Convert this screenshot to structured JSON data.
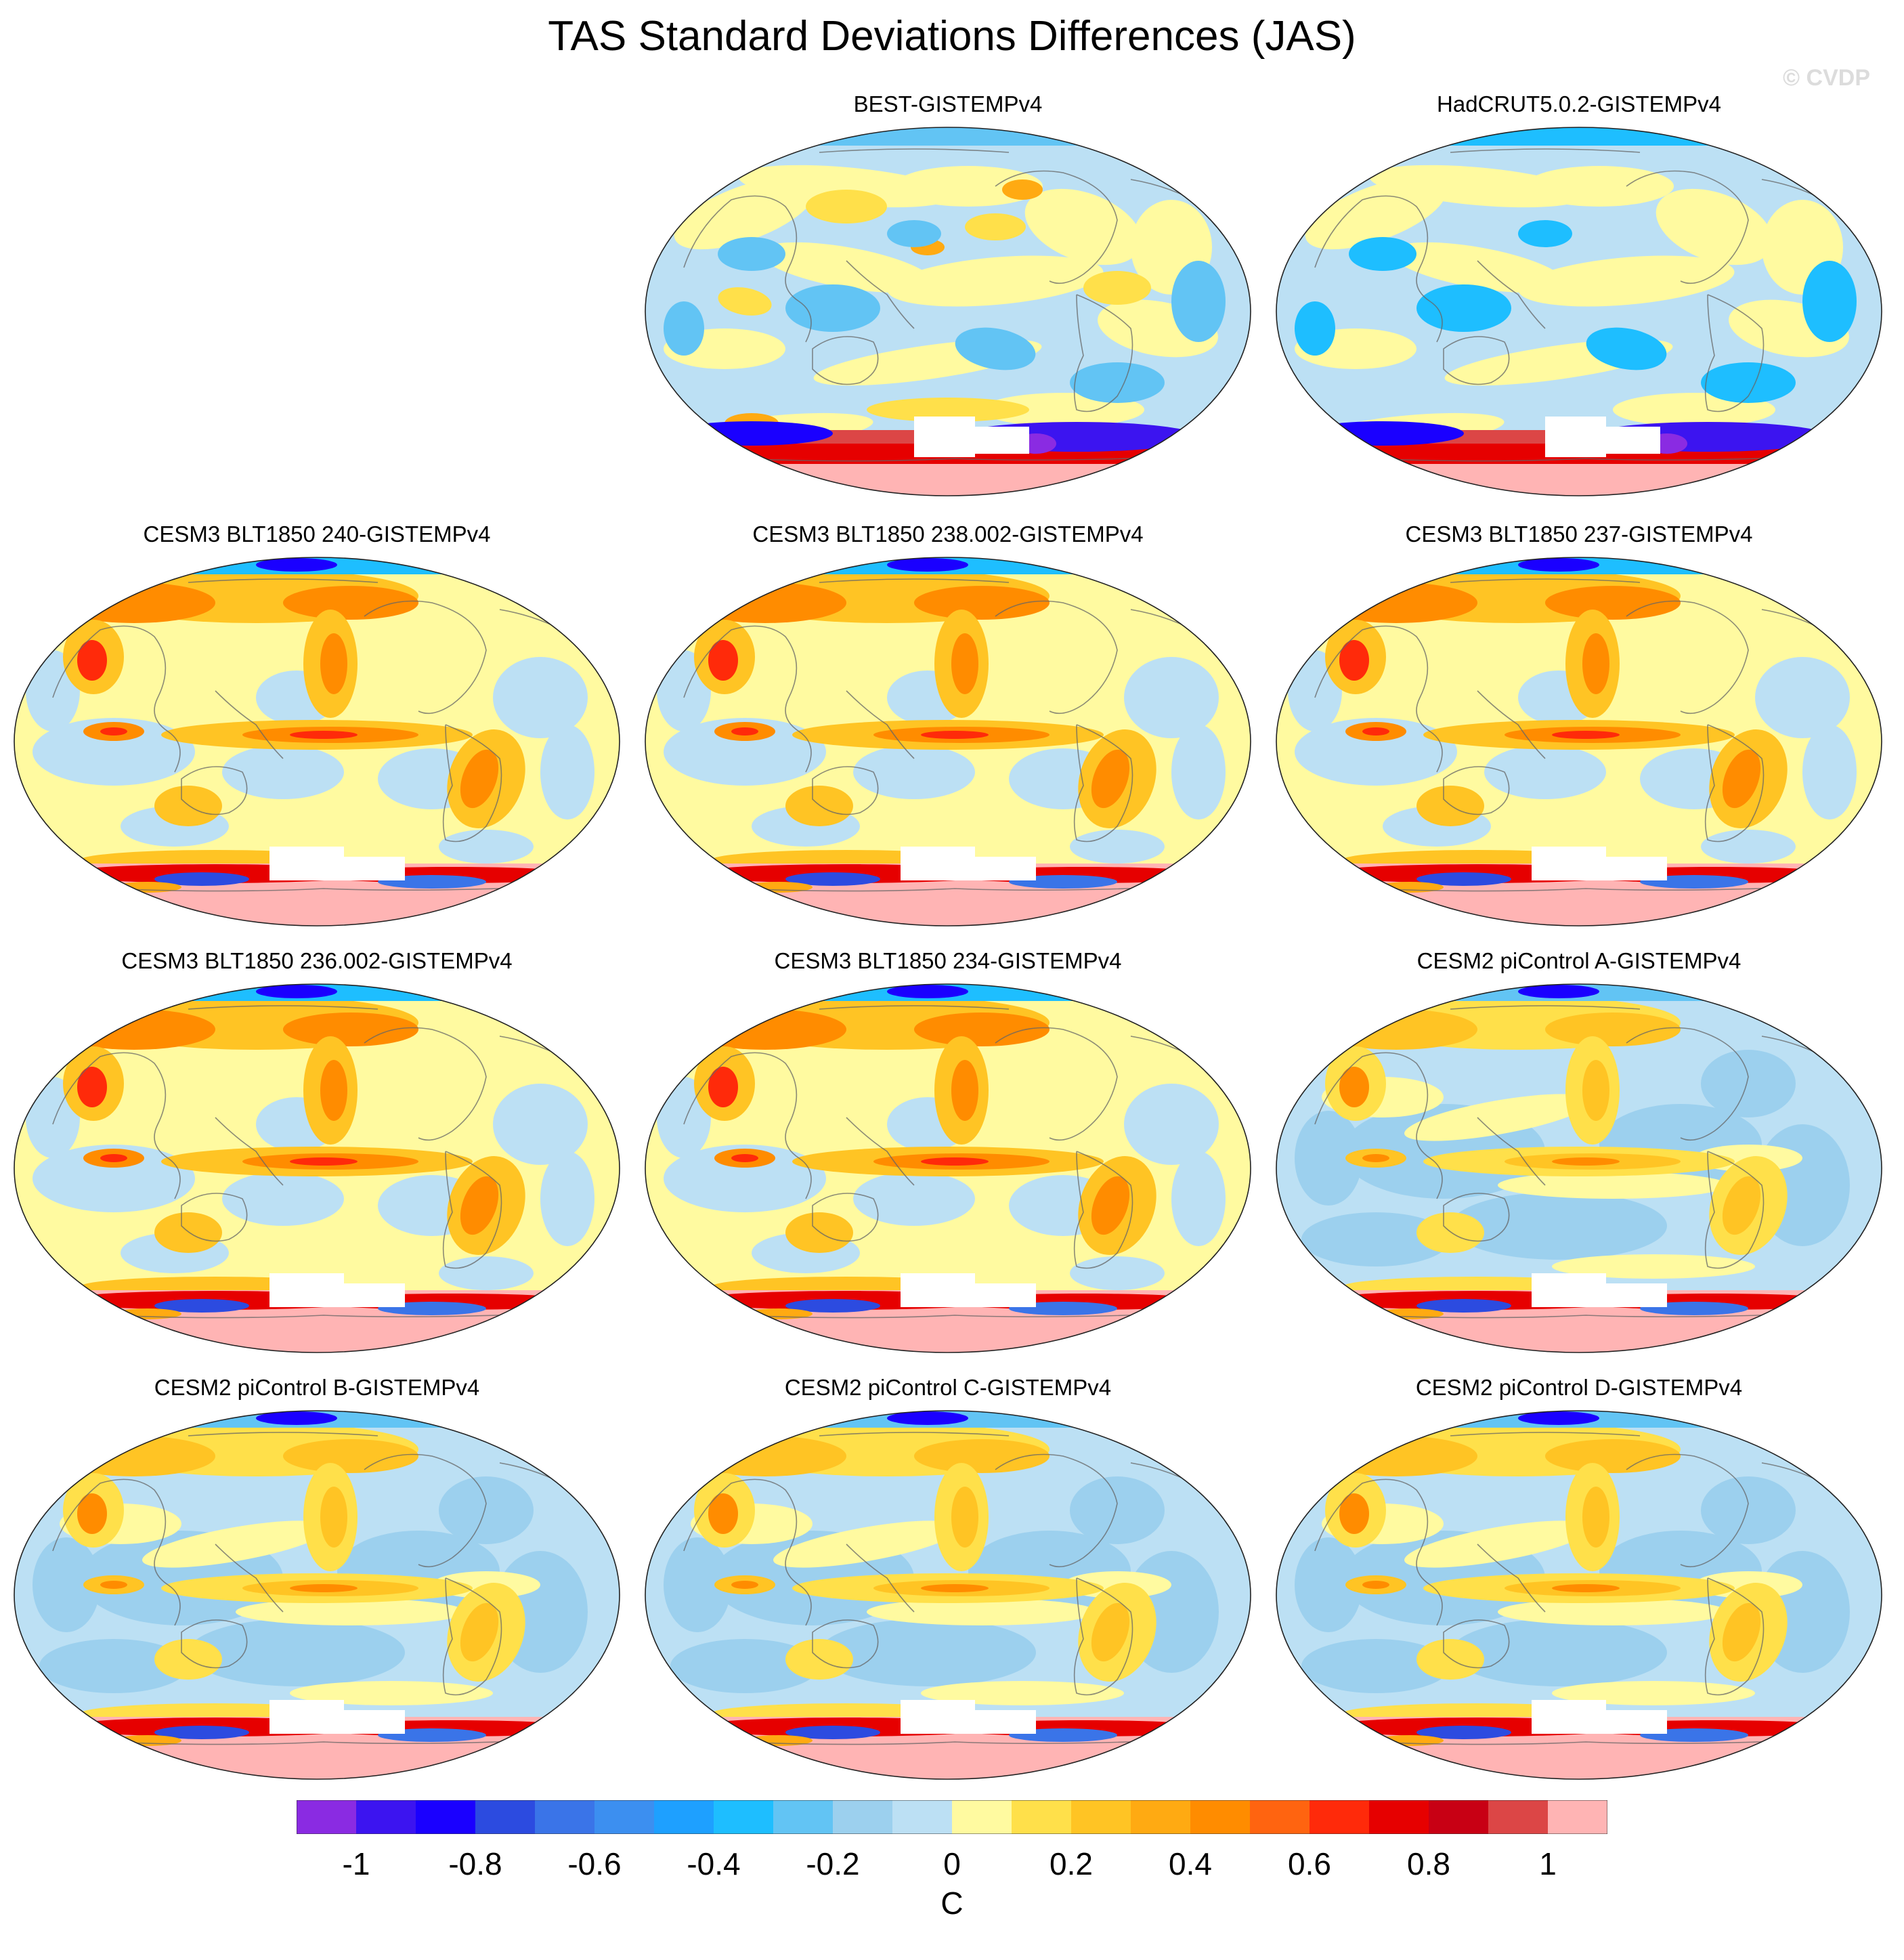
{
  "figure": {
    "title": "TAS Standard Deviations Differences (JAS)",
    "watermark": "© CVDP"
  },
  "panels": [
    {
      "title": "BEST-GISTEMPv4",
      "row": 0,
      "col": 1,
      "style": "obs_best"
    },
    {
      "title": "HadCRUT5.0.2-GISTEMPv4",
      "row": 0,
      "col": 2,
      "style": "obs_had"
    },
    {
      "title": "CESM3 BLT1850 240-GISTEMPv4",
      "row": 1,
      "col": 0,
      "style": "cesm3"
    },
    {
      "title": "CESM3 BLT1850 238.002-GISTEMPv4",
      "row": 1,
      "col": 1,
      "style": "cesm3"
    },
    {
      "title": "CESM3 BLT1850 237-GISTEMPv4",
      "row": 1,
      "col": 2,
      "style": "cesm3"
    },
    {
      "title": "CESM3 BLT1850 236.002-GISTEMPv4",
      "row": 2,
      "col": 0,
      "style": "cesm3"
    },
    {
      "title": "CESM3 BLT1850 234-GISTEMPv4",
      "row": 2,
      "col": 1,
      "style": "cesm3"
    },
    {
      "title": "CESM2 piControl A-GISTEMPv4",
      "row": 2,
      "col": 2,
      "style": "cesm2"
    },
    {
      "title": "CESM2 piControl B-GISTEMPv4",
      "row": 3,
      "col": 0,
      "style": "cesm2"
    },
    {
      "title": "CESM2 piControl C-GISTEMPv4",
      "row": 3,
      "col": 1,
      "style": "cesm2"
    },
    {
      "title": "CESM2 piControl D-GISTEMPv4",
      "row": 3,
      "col": 2,
      "style": "cesm2"
    }
  ],
  "colorbar": {
    "colors": [
      "#8a2be2",
      "#3c14f0",
      "#1a00ff",
      "#2c4be0",
      "#3a74e8",
      "#3c8ff0",
      "#1ea0ff",
      "#1ebeff",
      "#62c4f4",
      "#9cd0ee",
      "#bce0f4",
      "#fffaa0",
      "#ffe04a",
      "#ffc424",
      "#ffaa12",
      "#ff8c00",
      "#ff6410",
      "#ff2a0a",
      "#e60000",
      "#c80014",
      "#dc4646",
      "#ffb4b4"
    ],
    "tick_labels": [
      "-1",
      "-0.8",
      "-0.6",
      "-0.4",
      "-0.2",
      "0",
      "0.2",
      "0.4",
      "0.6",
      "0.8",
      "1"
    ],
    "units": "C"
  }
}
